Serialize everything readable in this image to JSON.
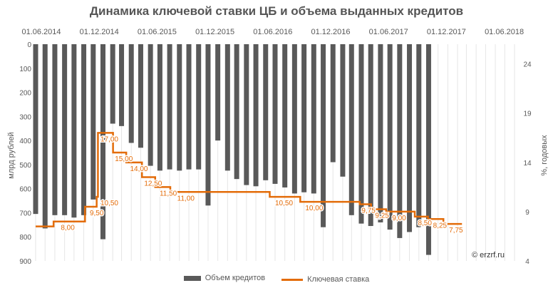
{
  "chart_data": {
    "type": "bar+line",
    "title": "Динамика ключевой ставки ЦБ и объема выданных кредитов",
    "top_axis": {
      "labels": [
        "01.06.2014",
        "01.12.2014",
        "01.06.2015",
        "01.12.2015",
        "01.06.2016",
        "01.12.2016",
        "01.06.2017",
        "01.12.2017",
        "01.06.2018"
      ],
      "range": [
        "2014-06-01",
        "2018-08-01"
      ]
    },
    "left_axis": {
      "label": "млрд рублей",
      "range": [
        0,
        900
      ],
      "inverted": true,
      "ticks": [
        0,
        100,
        200,
        300,
        400,
        500,
        600,
        700,
        800,
        900
      ]
    },
    "right_axis": {
      "label": "%, годовых",
      "range": [
        4,
        26
      ],
      "ticks": [
        4,
        9,
        14,
        19,
        24
      ]
    },
    "bars": {
      "name": "Объем кредитов",
      "color": "#595959",
      "x": [
        "2014-06-01",
        "2014-07-01",
        "2014-08-01",
        "2014-09-01",
        "2014-10-01",
        "2014-11-01",
        "2014-12-01",
        "2015-01-01",
        "2015-02-01",
        "2015-03-01",
        "2015-04-01",
        "2015-05-01",
        "2015-06-01",
        "2015-07-01",
        "2015-08-01",
        "2015-09-01",
        "2015-10-01",
        "2015-11-01",
        "2015-12-01",
        "2016-01-01",
        "2016-02-01",
        "2016-03-01",
        "2016-04-01",
        "2016-05-01",
        "2016-06-01",
        "2016-07-01",
        "2016-08-01",
        "2016-09-01",
        "2016-10-01",
        "2016-11-01",
        "2016-12-01",
        "2017-01-01",
        "2017-02-01",
        "2017-03-01",
        "2017-04-01",
        "2017-05-01",
        "2017-06-01",
        "2017-07-01",
        "2017-08-01",
        "2017-09-01",
        "2017-10-01",
        "2017-11-01"
      ],
      "values": [
        705,
        765,
        710,
        710,
        720,
        710,
        645,
        810,
        330,
        340,
        410,
        430,
        505,
        525,
        520,
        525,
        520,
        520,
        670,
        400,
        525,
        560,
        585,
        590,
        565,
        580,
        595,
        620,
        615,
        620,
        760,
        490,
        550,
        710,
        745,
        755,
        740,
        770,
        805,
        780,
        760,
        875
      ]
    },
    "line": {
      "name": "Ключевая ставка",
      "color": "#E36C09",
      "steps": [
        {
          "date": "2014-06-01",
          "value": 7.5
        },
        {
          "date": "2014-07-28",
          "value": 8.0
        },
        {
          "date": "2014-11-05",
          "value": 9.5
        },
        {
          "date": "2014-12-12",
          "value": 10.5
        },
        {
          "date": "2014-12-16",
          "value": 17.0
        },
        {
          "date": "2015-02-02",
          "value": 15.0
        },
        {
          "date": "2015-03-16",
          "value": 14.0
        },
        {
          "date": "2015-05-05",
          "value": 12.5
        },
        {
          "date": "2015-06-16",
          "value": 11.5
        },
        {
          "date": "2015-08-03",
          "value": 11.0
        },
        {
          "date": "2016-06-14",
          "value": 10.5
        },
        {
          "date": "2016-09-19",
          "value": 10.0
        },
        {
          "date": "2017-03-27",
          "value": 9.75
        },
        {
          "date": "2017-05-02",
          "value": 9.25
        },
        {
          "date": "2017-06-19",
          "value": 9.0
        },
        {
          "date": "2017-09-18",
          "value": 8.5
        },
        {
          "date": "2017-10-30",
          "value": 8.25
        },
        {
          "date": "2017-12-18",
          "value": 7.75
        },
        {
          "date": "2018-02-15",
          "value": 7.75
        }
      ],
      "labels": [
        {
          "text": "8,00",
          "date": "2014-08-20",
          "value": 8.0
        },
        {
          "text": "9,50",
          "date": "2014-11-20",
          "value": 9.5
        },
        {
          "text": "10,50",
          "date": "2014-12-24",
          "value": 10.5
        },
        {
          "text": "17,00",
          "date": "2014-12-24",
          "value": 17.0
        },
        {
          "text": "15,00",
          "date": "2015-02-08",
          "value": 15.0
        },
        {
          "text": "14,00",
          "date": "2015-03-28",
          "value": 14.0
        },
        {
          "text": "12,50",
          "date": "2015-05-12",
          "value": 12.5
        },
        {
          "text": "11,50",
          "date": "2015-06-30",
          "value": 11.5
        },
        {
          "text": "11,00",
          "date": "2015-08-25",
          "value": 11.0
        },
        {
          "text": "10,50",
          "date": "2016-07-01",
          "value": 10.5
        },
        {
          "text": "10,00",
          "date": "2016-10-05",
          "value": 10.0
        },
        {
          "text": "9,75",
          "date": "2017-04-02",
          "value": 9.75
        },
        {
          "text": "9,25",
          "date": "2017-05-15",
          "value": 9.25
        },
        {
          "text": "9,00",
          "date": "2017-07-08",
          "value": 9.0
        },
        {
          "text": "8,50",
          "date": "2017-09-28",
          "value": 8.5
        },
        {
          "text": "8,25",
          "date": "2017-11-15",
          "value": 8.25
        },
        {
          "text": "7,75",
          "date": "2018-01-05",
          "value": 7.75
        }
      ]
    },
    "grid": true,
    "legend": {
      "position": "bottom",
      "items": [
        "Объем кредитов",
        "Ключевая ставка"
      ]
    }
  },
  "credit": "© erzrf.ru"
}
